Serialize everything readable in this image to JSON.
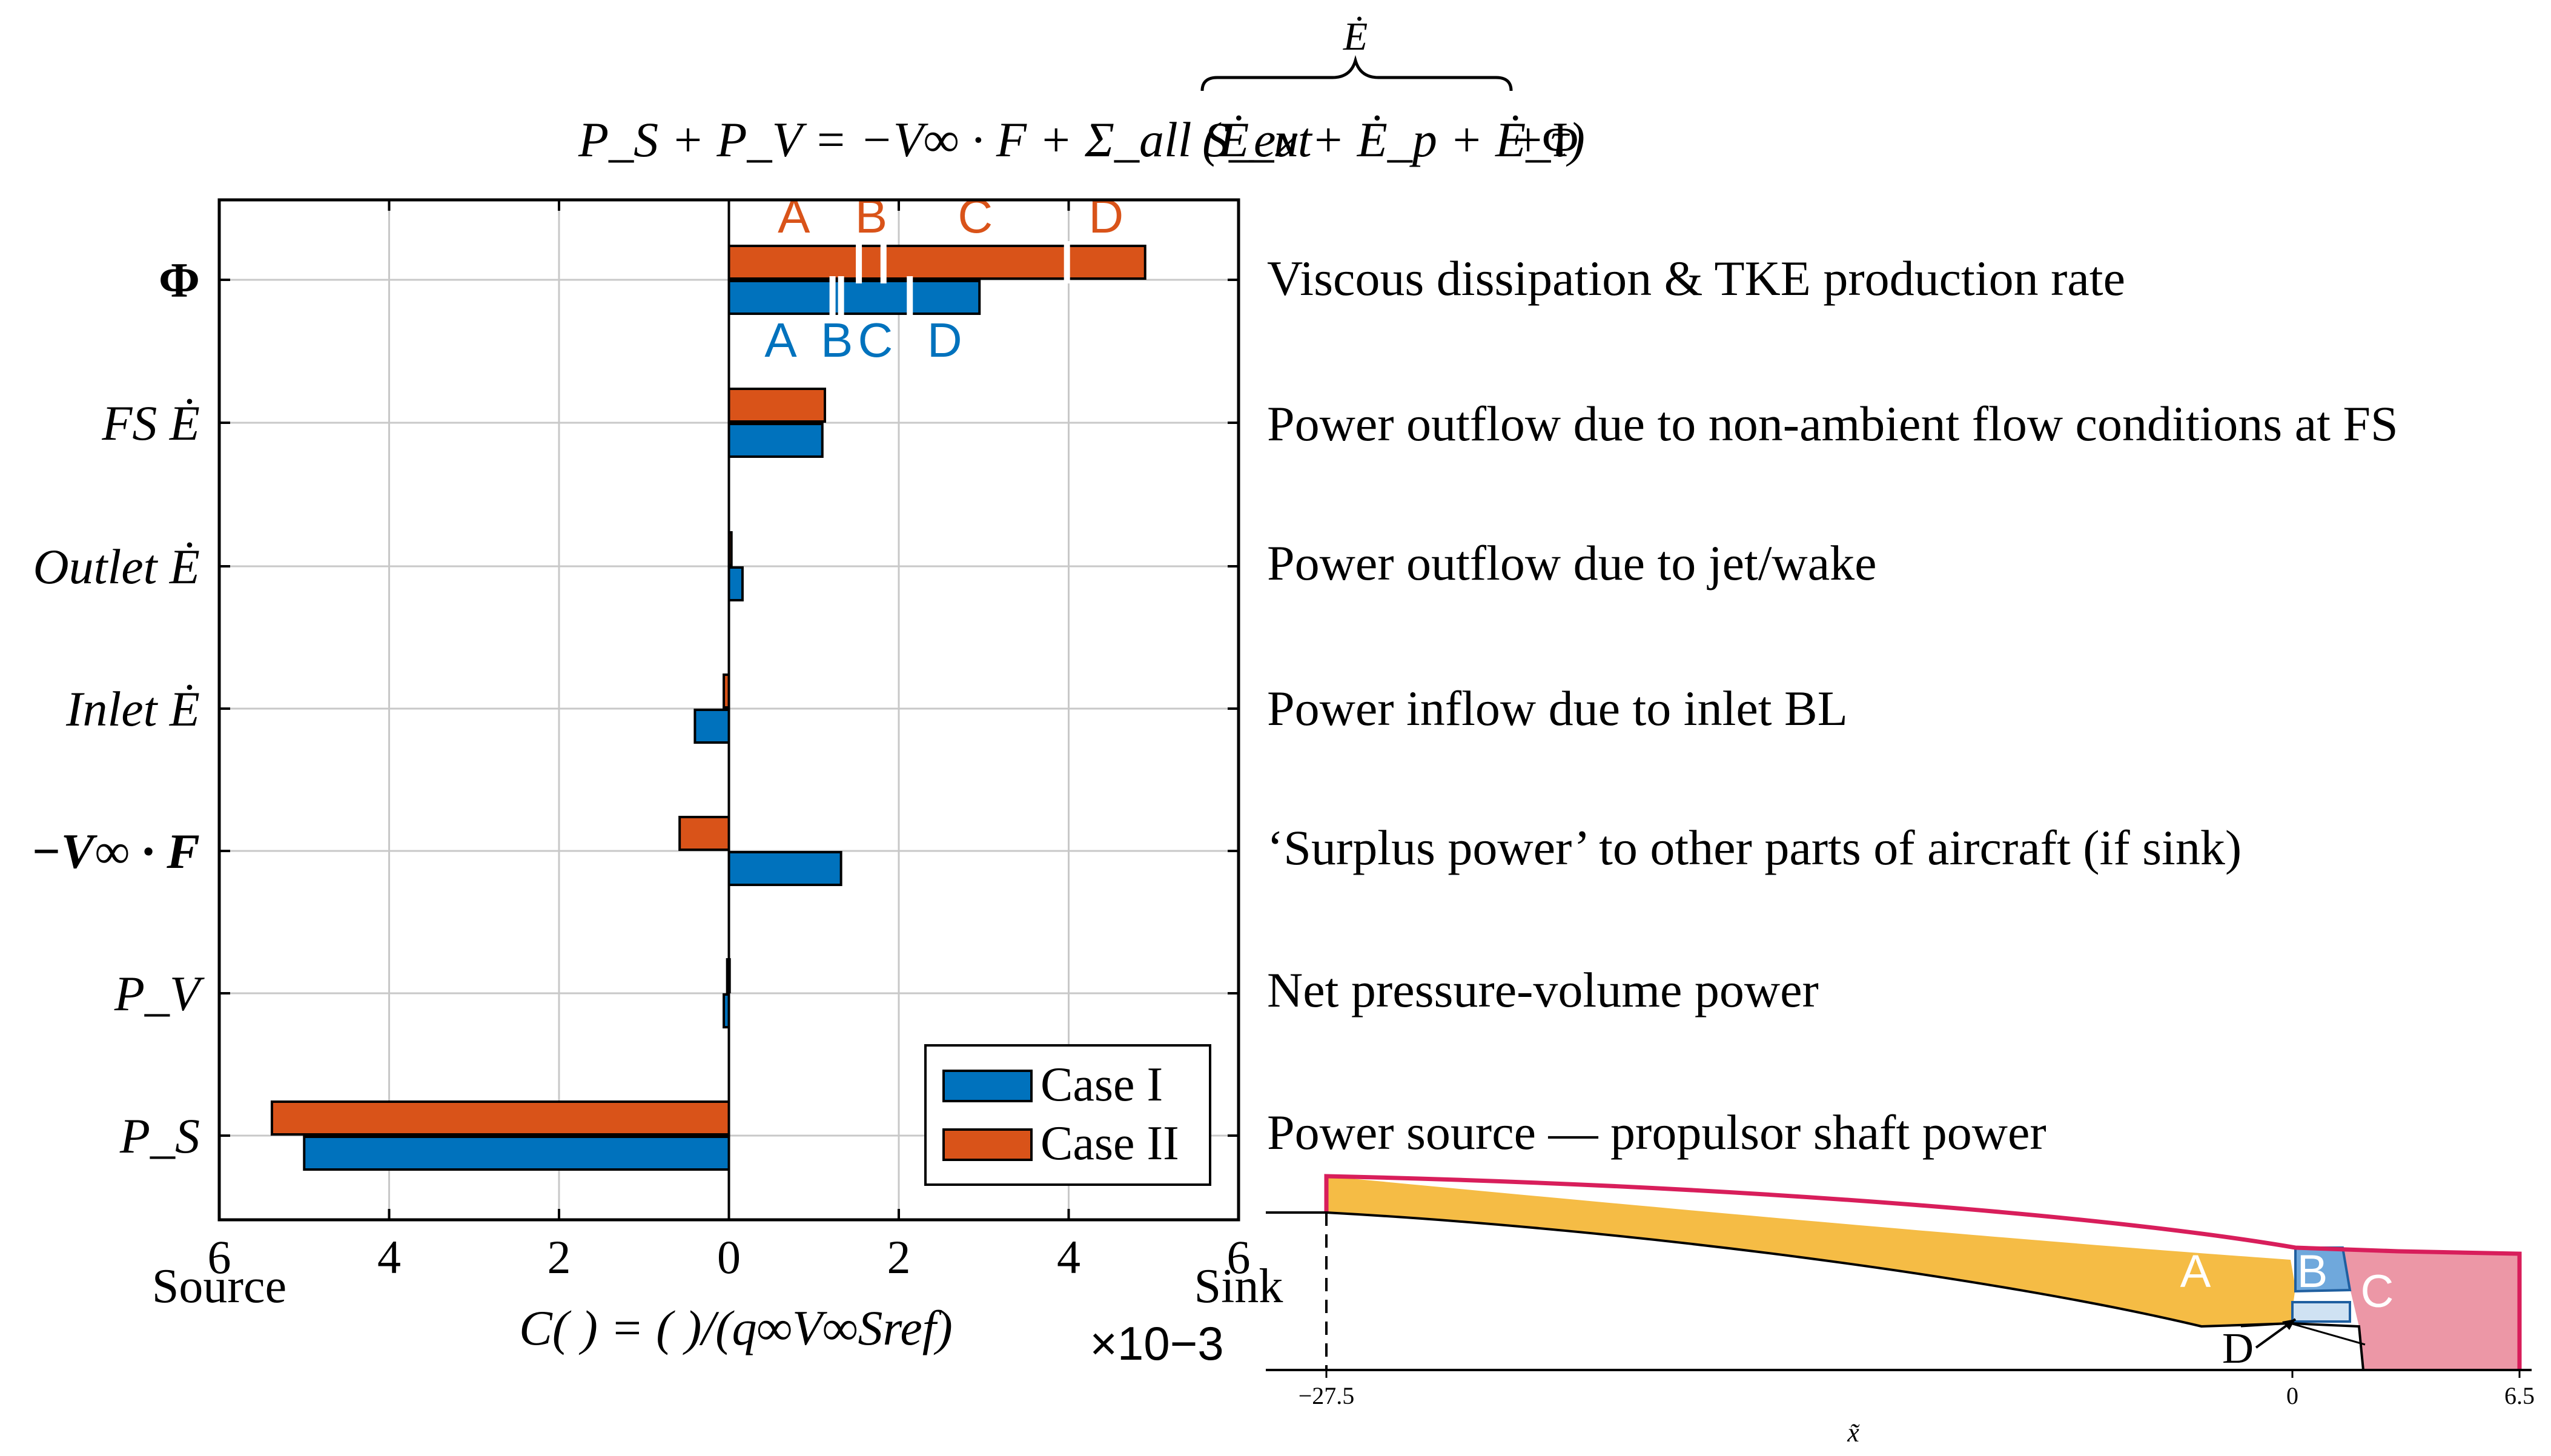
{
  "colors": {
    "case1": "#0072bd",
    "case2": "#d95319",
    "regionA": "#f5bc45",
    "regionB": "#6fa8dc",
    "regionC": "#ec97a6",
    "outline": "#d81e5b",
    "grid": "#c8c8c8"
  },
  "header": {
    "lhs": "P_S + P_V = −V∞ · F + Σ_all S_ext",
    "brace_label": "Ė",
    "brace_terms": "(Ė_u + Ė_p + Ė_τ)",
    "tail": "+Φ"
  },
  "chart_data": {
    "type": "bar",
    "orientation": "horizontal",
    "xlim": [
      -6,
      6
    ],
    "xticks": [
      6,
      4,
      2,
      0,
      2,
      4,
      6
    ],
    "xlabel": "C( ) = ( )/(q∞V∞Sref)",
    "x_multiplier": "×10−3",
    "x_left_label": "Source",
    "x_right_label": "Sink",
    "grid": true,
    "legend_position": "bottom-right",
    "categories": [
      "Φ",
      "FS Ė",
      "Outlet Ė",
      "Inlet Ė",
      "−V∞ · F",
      "P_V",
      "P_S"
    ],
    "series": [
      {
        "name": "Case I",
        "values": [
          2.95,
          1.1,
          0.16,
          -0.4,
          1.32,
          -0.06,
          -5.0
        ]
      },
      {
        "name": "Case II",
        "values": [
          4.9,
          1.13,
          0.03,
          -0.06,
          -0.58,
          -0.02,
          -5.38
        ]
      }
    ],
    "phi_breakdown": {
      "Case I": {
        "labels": [
          "A",
          "B",
          "C",
          "D"
        ],
        "boundaries": [
          1.22,
          1.32,
          2.13
        ]
      },
      "Case II": {
        "labels": [
          "A",
          "B",
          "C",
          "D"
        ],
        "boundaries": [
          1.53,
          1.82,
          3.98
        ]
      }
    }
  },
  "descriptions": [
    "Viscous dissipation & TKE production rate",
    "Power outflow due to non-ambient flow conditions at FS",
    "Power outflow due to jet/wake",
    "Power inflow due to inlet BL",
    "‘Surplus power’ to other parts of aircraft (if sink)",
    "Net pressure-volume power",
    "Power source — propulsor shaft power"
  ],
  "legend": [
    "Case I",
    "Case II"
  ],
  "inset": {
    "region_labels": [
      "A",
      "B",
      "C",
      "D"
    ],
    "x_ticks": [
      "−27.5",
      "0",
      "6.5"
    ],
    "x_label": "x̃"
  }
}
